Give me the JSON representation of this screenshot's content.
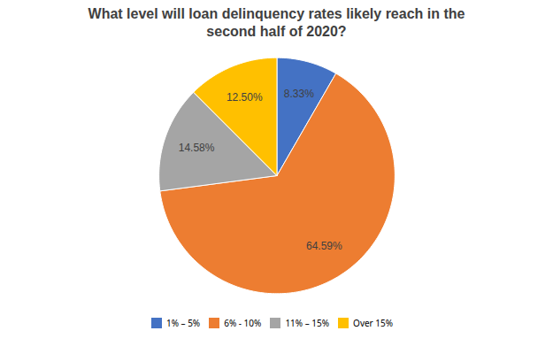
{
  "chart_data": {
    "type": "pie",
    "title": "What level will loan delinquency rates likely reach in the\nsecond half of 2020?",
    "categories": [
      "1% – 5%",
      "6% - 10%",
      "11% – 15%",
      "Over 15%"
    ],
    "values": [
      8.33,
      64.59,
      14.58,
      12.5
    ],
    "value_labels": [
      "8.33%",
      "64.59%",
      "14.58%",
      "12.50%"
    ],
    "colors": [
      "#4472C4",
      "#ED7D31",
      "#A5A5A5",
      "#FFC000"
    ],
    "data_labels": true,
    "legend": "bottom"
  }
}
